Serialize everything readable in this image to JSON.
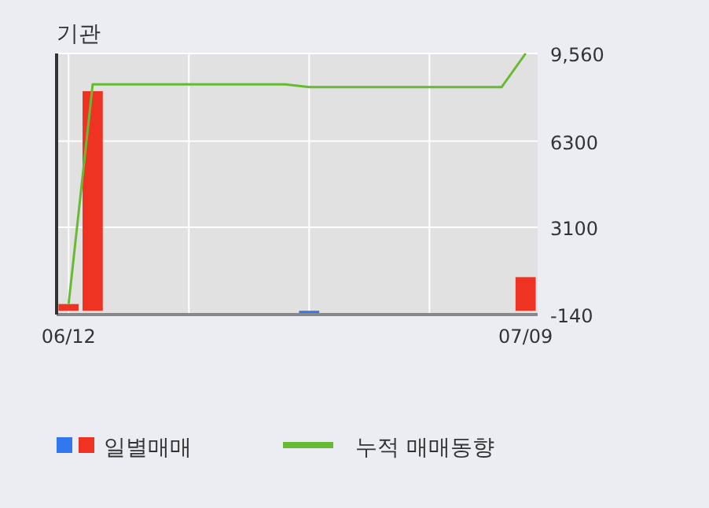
{
  "chart_data": {
    "type": "bar",
    "title": "기관",
    "categories": [
      "06/12",
      null,
      null,
      null,
      null,
      null,
      null,
      null,
      null,
      null,
      null,
      null,
      null,
      null,
      null,
      null,
      null,
      null,
      null,
      "07/09"
    ],
    "series": [
      {
        "name": "일별매매",
        "colors": [
          "#ee3322",
          "#ee3322",
          "#ee3322",
          "#ee3322",
          "#ee3322",
          "#ee3322",
          "#ee3322",
          "#ee3322",
          "#ee3322",
          "#ee3322",
          "#3377ee",
          "#ee3322",
          "#ee3322",
          "#ee3322",
          "#ee3322",
          "#ee3322",
          "#ee3322",
          "#ee3322",
          "#ee3322",
          "#ee3322"
        ],
        "values": [
          250,
          8160,
          0,
          0,
          0,
          0,
          0,
          0,
          0,
          0,
          -100,
          0,
          0,
          0,
          0,
          0,
          0,
          0,
          0,
          1250
        ]
      },
      {
        "name": "누적 매매동향",
        "type": "line",
        "color": "#66bb33",
        "values": [
          250,
          8410,
          8410,
          8410,
          8410,
          8410,
          8410,
          8410,
          8410,
          8410,
          8310,
          8310,
          8310,
          8310,
          8310,
          8310,
          8310,
          8310,
          8310,
          9560
        ]
      }
    ],
    "ylim": [
      -140,
      9560
    ],
    "yticks": [
      {
        "value": 9560,
        "label": "9,560"
      },
      6300,
      3100,
      -140
    ],
    "grid": true,
    "legend": "bottom"
  }
}
